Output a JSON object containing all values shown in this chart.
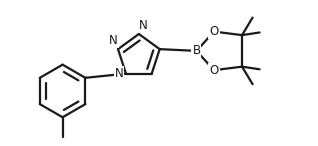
{
  "background_color": "#ffffff",
  "line_color": "#1a1a1a",
  "line_width": 1.6,
  "font_size": 8.5,
  "fig_width": 3.18,
  "fig_height": 1.46,
  "dpi": 100,
  "xlim": [
    -0.05,
    3.55
  ],
  "ylim": [
    -0.1,
    1.55
  ]
}
